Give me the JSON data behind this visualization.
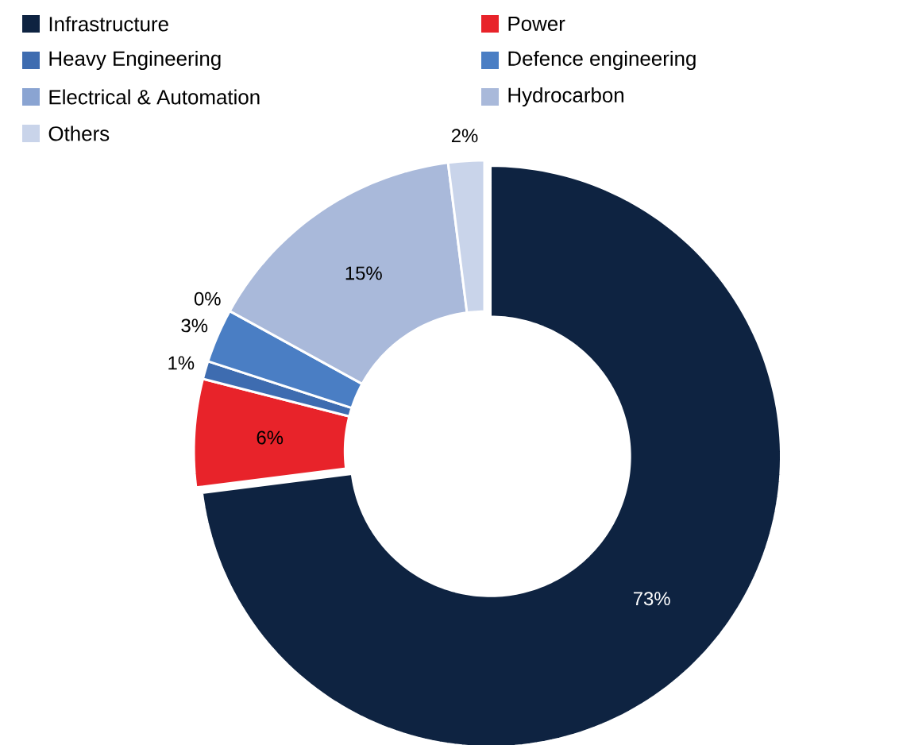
{
  "chart_data": {
    "type": "donut",
    "categories": [
      "Infrastructure",
      "Power",
      "Heavy Engineering",
      "Defence engineering",
      "Electrical & Automation",
      "Hydrocarbon",
      "Others"
    ],
    "values": [
      73,
      6,
      1,
      3,
      0,
      15,
      2
    ],
    "colors": [
      "#0e2341",
      "#e8232a",
      "#3e6cb0",
      "#4a7ec4",
      "#8aa4d2",
      "#a9b9da",
      "#c9d4ea"
    ],
    "value_labels": [
      "73%",
      "6%",
      "1%",
      "3%",
      "0%",
      "15%",
      "2%"
    ],
    "legend": "top"
  }
}
